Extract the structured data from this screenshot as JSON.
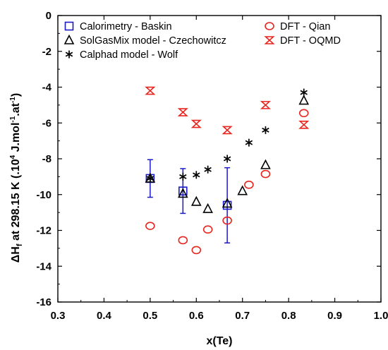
{
  "chart_data": {
    "type": "scatter",
    "title": "",
    "xlabel": "x(Te)",
    "ylabel": {
      "prefix": "ΔH",
      "subscript": "f",
      "rest": " at 298.15 K (.10",
      "sup1": "4",
      "rest2": " J.mol",
      "sup2": "-1",
      "rest3": ".at",
      "sup3": "-1",
      "end": ")"
    },
    "xlim": [
      0.3,
      1.0
    ],
    "ylim": [
      -16,
      0
    ],
    "xticks": [
      "0.3",
      "0.4",
      "0.5",
      "0.6",
      "0.7",
      "0.8",
      "0.9",
      "1.0"
    ],
    "yticks": [
      "0",
      "-2",
      "-4",
      "-6",
      "-8",
      "-10",
      "-12",
      "-14",
      "-16"
    ],
    "grid": false,
    "legend_placement": "top",
    "colors": {
      "blue": "#1a1ac8",
      "red": "#e8251f",
      "black": "#000000"
    },
    "series": [
      {
        "name": "Calorimetry - Baskin",
        "marker": "square",
        "color": "#1a1ac8",
        "points": [
          {
            "x": 0.5,
            "y": -9.1,
            "err": 1.05
          },
          {
            "x": 0.571,
            "y": -9.8,
            "err": 1.25
          },
          {
            "x": 0.667,
            "y": -10.6,
            "err": 2.1
          }
        ]
      },
      {
        "name": "SolGasMix model - Czechowitcz",
        "marker": "triangle",
        "color": "#000000",
        "points": [
          {
            "x": 0.5,
            "y": -9.1
          },
          {
            "x": 0.571,
            "y": -9.95
          },
          {
            "x": 0.6,
            "y": -10.4
          },
          {
            "x": 0.625,
            "y": -10.8
          },
          {
            "x": 0.667,
            "y": -10.5
          },
          {
            "x": 0.7,
            "y": -9.8
          },
          {
            "x": 0.75,
            "y": -8.35
          },
          {
            "x": 0.833,
            "y": -4.75
          }
        ]
      },
      {
        "name": "Calphad model - Wolf",
        "marker": "star",
        "color": "#000000",
        "points": [
          {
            "x": 0.5,
            "y": -9.1
          },
          {
            "x": 0.571,
            "y": -9.0
          },
          {
            "x": 0.6,
            "y": -8.9
          },
          {
            "x": 0.625,
            "y": -8.6
          },
          {
            "x": 0.667,
            "y": -8.0
          },
          {
            "x": 0.714,
            "y": -7.1
          },
          {
            "x": 0.75,
            "y": -6.4
          },
          {
            "x": 0.833,
            "y": -4.3
          }
        ]
      },
      {
        "name": "DFT - Qian",
        "marker": "circle",
        "color": "#e8251f",
        "points": [
          {
            "x": 0.5,
            "y": -11.75
          },
          {
            "x": 0.571,
            "y": -12.55
          },
          {
            "x": 0.6,
            "y": -13.1
          },
          {
            "x": 0.625,
            "y": -11.95
          },
          {
            "x": 0.667,
            "y": -11.45
          },
          {
            "x": 0.714,
            "y": -9.45
          },
          {
            "x": 0.75,
            "y": -8.85
          },
          {
            "x": 0.833,
            "y": -5.45
          }
        ]
      },
      {
        "name": "DFT - OQMD",
        "marker": "hourglass",
        "color": "#e8251f",
        "points": [
          {
            "x": 0.5,
            "y": -4.2
          },
          {
            "x": 0.571,
            "y": -5.4
          },
          {
            "x": 0.6,
            "y": -6.05
          },
          {
            "x": 0.667,
            "y": -6.4
          },
          {
            "x": 0.75,
            "y": -5.0
          },
          {
            "x": 0.833,
            "y": -6.1
          }
        ]
      }
    ]
  }
}
